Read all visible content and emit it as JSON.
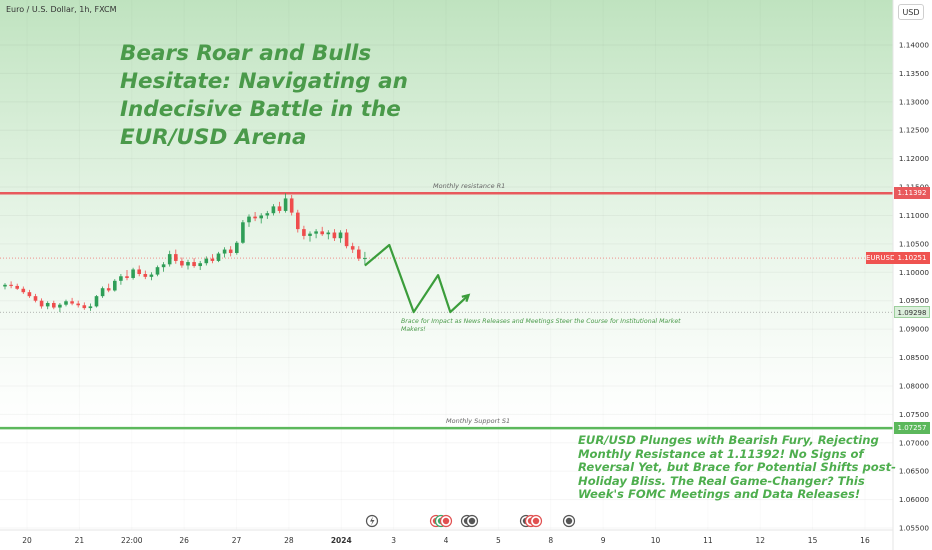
{
  "header": {
    "symbol_line": "Euro / U.S. Dollar, 1h, FXCM",
    "currency_button": "USD"
  },
  "texts": {
    "title": "Bears Roar and Bulls Hesitate: Navigating an Indecisive Battle in the EUR/USD Arena",
    "bottom_note": "EUR/USD Plunges with Bearish Fury, Rejecting Monthly Resistance at 1.11392! No Signs of Reversal Yet, but Brace for Potential Shifts post-Holiday Bliss. The Real Game-Changer? This Week's FOMC Meetings and Data Releases!",
    "middle_note": "Brace for Impact as News Releases and Meetings Steer the Course for Institutional Market Makers!"
  },
  "colors": {
    "resistance": "#e8595c",
    "support": "#5cb85c",
    "bull": "#2f9e57",
    "bear": "#ef4d4d",
    "price_label": "#ef5350",
    "arrow": "#3b9d3b",
    "zone_top": "#bfe3bf",
    "zone_bottom": "#ffffff"
  },
  "chart_data": {
    "type": "candlestick",
    "symbol": "EURUSD",
    "interval": "1h",
    "y_axis": {
      "ticks": [
        "1.14000",
        "1.13500",
        "1.13000",
        "1.12500",
        "1.12000",
        "1.11500",
        "1.11000",
        "1.10500",
        "1.10000",
        "1.09500",
        "1.09000",
        "1.08500",
        "1.08000",
        "1.07500",
        "1.07000",
        "1.06500",
        "1.06000",
        "1.05500"
      ],
      "range": [
        1.0545,
        1.1455
      ]
    },
    "x_axis": {
      "ticks": [
        "20",
        "21",
        "22:00",
        "26",
        "27",
        "28",
        "2024",
        "3",
        "4",
        "5",
        "8",
        "9",
        "10",
        "11",
        "12",
        "15",
        "16"
      ],
      "range": [
        0,
        100
      ]
    },
    "levels": [
      {
        "name": "Monthly resistance R1",
        "value": 1.11392,
        "label": "1.11392"
      },
      {
        "name": "Monthly Support S1",
        "value": 1.07257,
        "label": "1.07257"
      }
    ],
    "current_price": {
      "symbol": "EURUSD",
      "value": 1.10251,
      "label": "1.10251"
    },
    "target_level": {
      "value": 1.09298,
      "label": "1.09298"
    },
    "candles": [
      [
        0,
        1.0975,
        1.0981,
        1.097,
        1.0978
      ],
      [
        1,
        1.0978,
        1.0984,
        1.0972,
        1.0976
      ],
      [
        2,
        1.0976,
        1.098,
        1.0969,
        1.0971
      ],
      [
        3,
        1.0971,
        1.0975,
        1.0962,
        1.0965
      ],
      [
        4,
        1.0965,
        1.0969,
        1.0955,
        1.0958
      ],
      [
        5,
        1.0958,
        1.0962,
        1.0947,
        1.095
      ],
      [
        6,
        1.095,
        1.0954,
        1.0936,
        1.094
      ],
      [
        7,
        1.094,
        1.0949,
        1.0935,
        1.0946
      ],
      [
        8,
        1.0946,
        1.095,
        1.0935,
        1.0938
      ],
      [
        9,
        1.0938,
        1.0946,
        1.093,
        1.0943
      ],
      [
        10,
        1.0943,
        1.0952,
        1.094,
        1.0949
      ],
      [
        11,
        1.0949,
        1.0955,
        1.0942,
        1.0945
      ],
      [
        12,
        1.0945,
        1.095,
        1.0938,
        1.0942
      ],
      [
        13,
        1.0942,
        1.0947,
        1.0934,
        1.0937
      ],
      [
        14,
        1.0937,
        1.0945,
        1.0932,
        1.094
      ],
      [
        15,
        1.094,
        1.096,
        1.0938,
        1.0958
      ],
      [
        16,
        1.0958,
        1.0975,
        1.0955,
        1.0972
      ],
      [
        17,
        1.0972,
        1.098,
        1.0965,
        1.0968
      ],
      [
        18,
        1.0968,
        1.0988,
        1.0966,
        1.0985
      ],
      [
        19,
        1.0985,
        1.0997,
        1.0978,
        1.0993
      ],
      [
        20,
        1.0993,
        1.1004,
        1.0986,
        1.099
      ],
      [
        21,
        1.099,
        1.1008,
        1.0987,
        1.1005
      ],
      [
        22,
        1.1005,
        1.1012,
        1.0993,
        1.0997
      ],
      [
        23,
        1.0997,
        1.1003,
        1.0988,
        1.0992
      ],
      [
        24,
        1.0992,
        1.1,
        1.0986,
        1.0996
      ],
      [
        25,
        1.0996,
        1.1012,
        1.0993,
        1.1009
      ],
      [
        26,
        1.1009,
        1.1018,
        1.1001,
        1.1014
      ],
      [
        27,
        1.1014,
        1.1038,
        1.101,
        1.1032
      ],
      [
        28,
        1.1032,
        1.104,
        1.1015,
        1.102
      ],
      [
        29,
        1.102,
        1.1026,
        1.1008,
        1.1012
      ],
      [
        30,
        1.1012,
        1.1022,
        1.1005,
        1.1018
      ],
      [
        31,
        1.1018,
        1.1025,
        1.1008,
        1.1011
      ],
      [
        32,
        1.1011,
        1.102,
        1.1004,
        1.1016
      ],
      [
        33,
        1.1016,
        1.1028,
        1.1012,
        1.1024
      ],
      [
        34,
        1.1024,
        1.1032,
        1.1016,
        1.102
      ],
      [
        35,
        1.102,
        1.1036,
        1.1018,
        1.1033
      ],
      [
        36,
        1.1033,
        1.1044,
        1.1026,
        1.104
      ],
      [
        37,
        1.104,
        1.1046,
        1.1028,
        1.1034
      ],
      [
        38,
        1.1034,
        1.1055,
        1.1031,
        1.1052
      ],
      [
        39,
        1.1052,
        1.1092,
        1.105,
        1.1088
      ],
      [
        40,
        1.1088,
        1.1102,
        1.108,
        1.1098
      ],
      [
        41,
        1.1098,
        1.1106,
        1.109,
        1.1095
      ],
      [
        42,
        1.1095,
        1.1104,
        1.1086,
        1.11
      ],
      [
        43,
        1.11,
        1.1108,
        1.1094,
        1.1104
      ],
      [
        44,
        1.1104,
        1.112,
        1.11,
        1.1116
      ],
      [
        45,
        1.1116,
        1.1124,
        1.1104,
        1.1108
      ],
      [
        46,
        1.1108,
        1.1139,
        1.1105,
        1.113
      ],
      [
        47,
        1.113,
        1.1136,
        1.11,
        1.1105
      ],
      [
        48,
        1.1105,
        1.111,
        1.107,
        1.1076
      ],
      [
        49,
        1.1076,
        1.1082,
        1.1058,
        1.1064
      ],
      [
        50,
        1.1064,
        1.1072,
        1.1054,
        1.1068
      ],
      [
        51,
        1.1068,
        1.1076,
        1.106,
        1.1072
      ],
      [
        52,
        1.1072,
        1.108,
        1.1064,
        1.1067
      ],
      [
        53,
        1.1067,
        1.1074,
        1.1058,
        1.107
      ],
      [
        54,
        1.107,
        1.1076,
        1.1055,
        1.106
      ],
      [
        55,
        1.106,
        1.1074,
        1.1052,
        1.107
      ],
      [
        56,
        1.107,
        1.1076,
        1.1042,
        1.1046
      ],
      [
        57,
        1.1046,
        1.1052,
        1.1034,
        1.104
      ],
      [
        58,
        1.104,
        1.1046,
        1.102,
        1.1024
      ],
      [
        59,
        1.1024,
        1.1036,
        1.1012,
        1.1025
      ]
    ],
    "projection": [
      [
        59,
        1.1012
      ],
      [
        63,
        1.1048
      ],
      [
        67,
        1.093
      ],
      [
        71,
        1.0995
      ],
      [
        73,
        1.093
      ],
      [
        76,
        1.096
      ]
    ]
  }
}
